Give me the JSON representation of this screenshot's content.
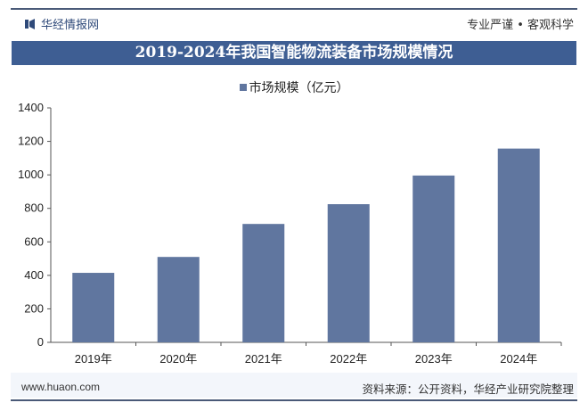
{
  "header": {
    "brand": "华经情报网",
    "slogan": "专业严谨 • 客观科学"
  },
  "title": "2019-2024年我国智能物流装备市场规模情况",
  "footer": {
    "website": "www.huaon.com",
    "source": "资料来源：公开资料，华经产业研究院整理"
  },
  "watermark": {
    "text": "华经产业研究院",
    "url": "www.huaon.com"
  },
  "colors": {
    "bar": "#60769f",
    "title_bg": "#3e5e93"
  },
  "chart_data": {
    "type": "bar",
    "title": "2019-2024年我国智能物流装备市场规模情况",
    "categories": [
      "2019年",
      "2020年",
      "2021年",
      "2022年",
      "2023年",
      "2024年"
    ],
    "series": [
      {
        "name": "市场规模（亿元）",
        "values": [
          415,
          510,
          707,
          825,
          996,
          1157
        ]
      }
    ],
    "ylim": [
      0,
      1400
    ],
    "yticks": [
      0,
      200,
      400,
      600,
      800,
      1000,
      1200,
      1400
    ],
    "grid": false,
    "legend": "top-center"
  }
}
